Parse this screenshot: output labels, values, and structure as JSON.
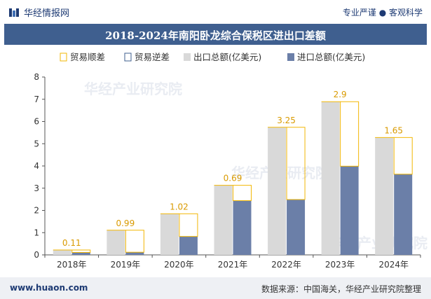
{
  "header": {
    "brand": "华经情报网",
    "slogan": "专业严谨 ● 客观科学"
  },
  "chart_title": "2018-2024年南阳卧龙综合保税区进出口差额",
  "footer": {
    "website": "www.huaon.com",
    "source": "数据来源：中国海关，华经产业研究院整理"
  },
  "watermark": "华经产业研究院",
  "colors": {
    "export": "#d9d9d9",
    "import": "#6b7fa8",
    "surplus": "#f2b705",
    "deficit": "#3f5f8f",
    "title_bg": "#3f5f8f"
  },
  "chart_data": {
    "type": "bar",
    "title": "2018-2024年南阳卧龙综合保税区进出口差额",
    "categories": [
      "2018年",
      "2019年",
      "2020年",
      "2021年",
      "2022年",
      "2023年",
      "2024年"
    ],
    "series": [
      {
        "name": "出口总额(亿美元)",
        "values": [
          0.22,
          1.11,
          1.85,
          3.13,
          5.74,
          6.89,
          5.28
        ]
      },
      {
        "name": "进口总额(亿美元)",
        "values": [
          0.11,
          0.12,
          0.83,
          2.44,
          2.49,
          3.99,
          3.63
        ]
      }
    ],
    "balance": {
      "surplus_name": "贸易顺差",
      "deficit_name": "贸易逆差",
      "values": [
        0.11,
        0.99,
        1.02,
        0.69,
        3.25,
        2.9,
        1.65
      ],
      "labels": [
        "0.11",
        "0.99",
        "1.02",
        "0.69",
        "3.25",
        "2.9",
        "1.65"
      ]
    },
    "legend": [
      "贸易顺差",
      "贸易逆差",
      "出口总额(亿美元)",
      "进口总额(亿美元)"
    ],
    "legend_position": "top",
    "ylim": [
      0,
      8
    ],
    "yticks": [
      "0",
      "1",
      "2",
      "3",
      "4",
      "5",
      "6",
      "7",
      "8"
    ],
    "grid": false
  }
}
